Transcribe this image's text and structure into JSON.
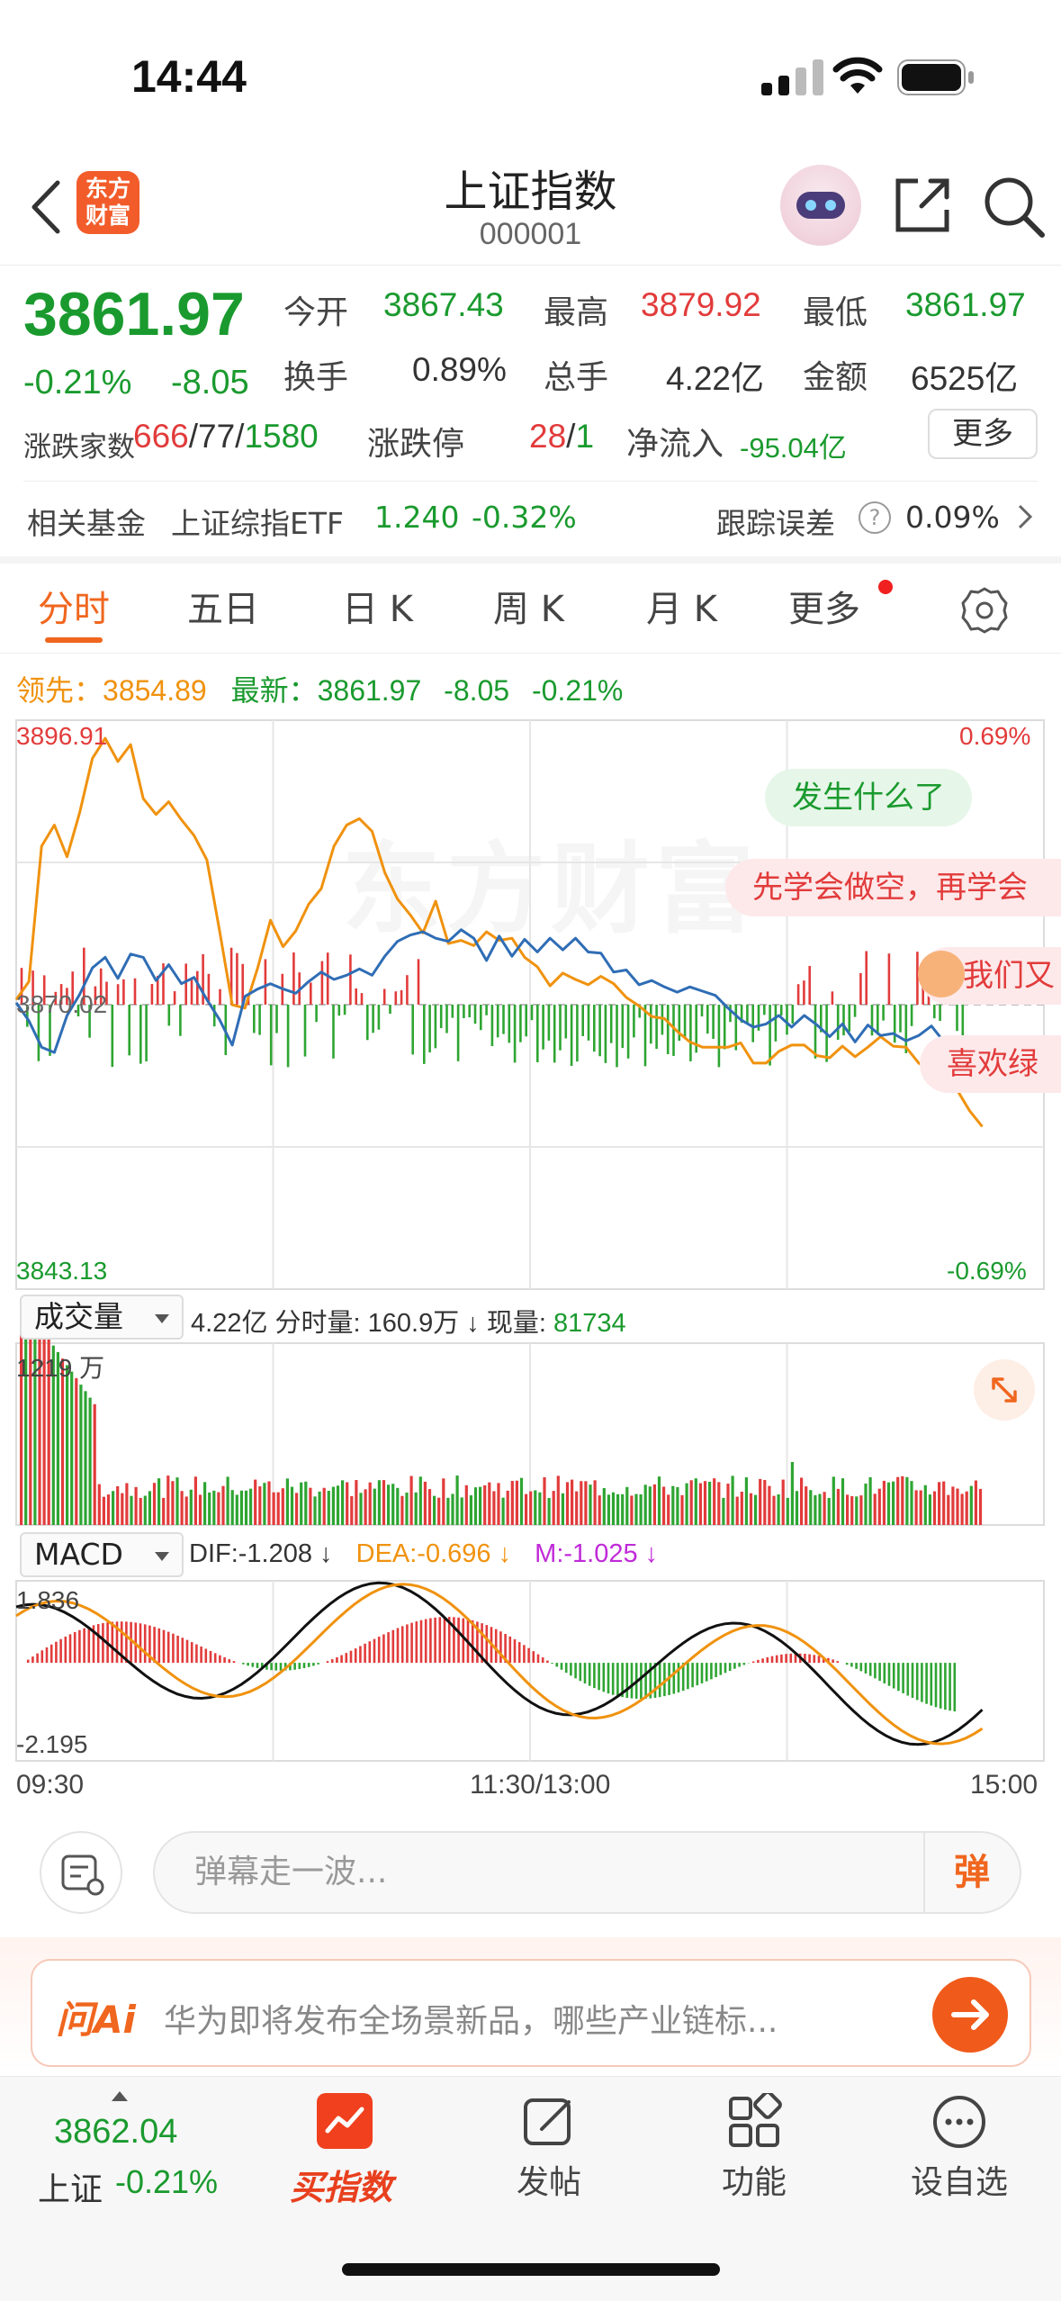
{
  "status_bar": {
    "time": "14:44"
  },
  "header": {
    "logo_line1": "东方",
    "logo_line2": "财富",
    "title": "上证指数",
    "code": "000001"
  },
  "quote": {
    "price": "3861.97",
    "change_pct": "-0.21%",
    "change": "-8.05",
    "stats": [
      {
        "label": "今开",
        "value": "3867.43",
        "color": "green"
      },
      {
        "label": "最高",
        "value": "3879.92",
        "color": "red"
      },
      {
        "label": "最低",
        "value": "3861.97",
        "color": "green"
      },
      {
        "label": "换手",
        "value": "0.89%",
        "color": "neutral"
      },
      {
        "label": "总手",
        "value": "4.22亿",
        "color": "neutral"
      },
      {
        "label": "金额",
        "value": "6525亿",
        "color": "neutral"
      }
    ],
    "breadth_label": "涨跌家数",
    "breadth_up": "666",
    "breadth_flat": "77",
    "breadth_down": "1580",
    "limit_label": "涨跌停",
    "limit_up": "28",
    "limit_down": "1",
    "netflow_label": "净流入",
    "netflow_value": "-95.04亿",
    "more_button": "更多",
    "fund_label": "相关基金",
    "fund_name": "上证综指ETF",
    "fund_price": "1.240",
    "fund_pct": "-0.32%",
    "tracking_label": "跟踪误差",
    "tracking_value": "0.09%",
    "help_symbol": "?"
  },
  "tabs": [
    "分时",
    "五日",
    "日 K",
    "周 K",
    "月 K",
    "更多"
  ],
  "active_tab": 0,
  "chart_info": {
    "lead_label": "领先：",
    "lead_value": "3854.89",
    "latest_label": "最新：",
    "latest_value": "3861.97",
    "latest_change": "-8.05",
    "latest_pct": "-0.21%"
  },
  "main_axis": {
    "top_value": "3896.91",
    "mid_value": "3870.02",
    "bottom_value": "3843.13",
    "top_pct": "0.69%",
    "bottom_pct": "-0.69%"
  },
  "watermark": "东方财富",
  "bubbles": [
    "发生什么了",
    "先学会做空，再学会",
    "我们又",
    "喜欢绿"
  ],
  "volume_panel": {
    "selector": "成交量",
    "total": "4.22亿",
    "per_min_label": "分时量:",
    "per_min_value": "160.9万",
    "current_label": "现量:",
    "current_value": "81734",
    "max_label": "1219 万"
  },
  "macd_panel": {
    "selector": "MACD",
    "dif": "DIF:-1.208 ↓",
    "dea": "DEA:-0.696 ↓",
    "m": "M:-1.025 ↓",
    "top_value": "1.836",
    "bottom_value": "-2.195"
  },
  "time_axis": [
    "09:30",
    "11:30/13:00",
    "15:00"
  ],
  "danmaku": {
    "placeholder": "弹幕走一波...",
    "send_label": "弹"
  },
  "ai": {
    "logo": "问Ai",
    "prompt": "华为即将发布全场景新品，哪些产业链标..."
  },
  "bottom_nav": {
    "quote_value": "3862.04",
    "quote_name": "上证",
    "quote_pct": "-0.21%",
    "items": [
      "买指数",
      "发帖",
      "功能",
      "设自选"
    ]
  },
  "chart_data": {
    "type": "line",
    "title": "",
    "x_range": [
      "09:30",
      "15:00"
    ],
    "ylim": [
      3843.13,
      3896.91
    ],
    "baseline": 3870.02,
    "series": [
      {
        "name": "最新",
        "color": "#2f6db5",
        "x": [
          0,
          5,
          10,
          15,
          20,
          25,
          30,
          35,
          40,
          45,
          50,
          55,
          60,
          65,
          70,
          75,
          80,
          85,
          90,
          95,
          100,
          105,
          110,
          115,
          120,
          125,
          130,
          135,
          140,
          145,
          150,
          155,
          160,
          165,
          170,
          175,
          180,
          185,
          190,
          195,
          200,
          205,
          210,
          215,
          220,
          225,
          230,
          235,
          240,
          245,
          250,
          255,
          260,
          265,
          270,
          275,
          280,
          285,
          290,
          295,
          300,
          305,
          310,
          315,
          320,
          325,
          330,
          335,
          340,
          345,
          350,
          355,
          360,
          365,
          370,
          375,
          380
        ],
        "values": [
          3870.2,
          3868.5,
          3866.0,
          3865.5,
          3869.0,
          3871.0,
          3873.5,
          3874.5,
          3872.5,
          3874.8,
          3874.5,
          3872.3,
          3873.8,
          3872.0,
          3872.6,
          3870.5,
          3868.6,
          3866.2,
          3870.8,
          3871.5,
          3872.0,
          3871.5,
          3871.1,
          3872.2,
          3873.1,
          3872.4,
          3872.8,
          3873.4,
          3872.8,
          3874.6,
          3876.0,
          3876.6,
          3876.9,
          3876.3,
          3876.0,
          3877.1,
          3876.3,
          3874.2,
          3876.5,
          3874.6,
          3876.2,
          3875.0,
          3876.3,
          3875.2,
          3876.3,
          3875.0,
          3874.9,
          3873.1,
          3873.3,
          3871.9,
          3872.3,
          3871.7,
          3871.2,
          3871.7,
          3871.3,
          3870.9,
          3869.7,
          3868.6,
          3867.9,
          3868.2,
          3869.0,
          3867.9,
          3869.0,
          3868.1,
          3867.0,
          3868.2,
          3866.5,
          3868.1,
          3867.1,
          3867.3,
          3866.6,
          3867.1,
          3868.0,
          3866.5,
          3865.7,
          3864.7,
          3864.9
        ]
      },
      {
        "name": "领先",
        "color": "#f0920e",
        "x": [
          0,
          5,
          10,
          15,
          20,
          25,
          30,
          35,
          40,
          45,
          50,
          55,
          60,
          65,
          70,
          75,
          80,
          85,
          90,
          95,
          100,
          105,
          110,
          115,
          120,
          125,
          130,
          135,
          140,
          145,
          150,
          155,
          160,
          165,
          170,
          175,
          180,
          185,
          190,
          195,
          200,
          205,
          210,
          215,
          220,
          225,
          230,
          235,
          240,
          245,
          250,
          255,
          260,
          265,
          270,
          275,
          280,
          285,
          290,
          295,
          300,
          305,
          310,
          315,
          320,
          325,
          330,
          335,
          340,
          345,
          350,
          355,
          360,
          365,
          370,
          375,
          380
        ],
        "values": [
          3870.5,
          3872.2,
          3885.0,
          3887.0,
          3884.0,
          3888.2,
          3893.3,
          3895.2,
          3893.0,
          3894.6,
          3889.5,
          3888.0,
          3889.2,
          3887.5,
          3886.0,
          3883.7,
          3877.0,
          3870.0,
          3869.7,
          3873.5,
          3878.0,
          3875.5,
          3877.0,
          3879.5,
          3881.0,
          3885.0,
          3887.0,
          3887.6,
          3886.4,
          3882.5,
          3880.0,
          3878.5,
          3876.8,
          3879.8,
          3875.8,
          3876.1,
          3875.6,
          3876.9,
          3876.1,
          3876.3,
          3874.5,
          3873.6,
          3871.8,
          3873.0,
          3872.4,
          3871.9,
          3872.7,
          3872.0,
          3870.7,
          3869.9,
          3868.9,
          3868.7,
          3867.5,
          3866.5,
          3866.0,
          3866.0,
          3866.0,
          3866.4,
          3864.5,
          3864.5,
          3865.6,
          3866.2,
          3866.2,
          3865.2,
          3865.0,
          3866.1,
          3865.1,
          3866.0,
          3867.0,
          3866.1,
          3866.0,
          3864.5,
          3863.8,
          3863.0,
          3862.0,
          3860.0,
          3858.5
        ]
      }
    ],
    "volume_max": "1219 万",
    "macd_range": [
      -2.195,
      1.836
    ]
  }
}
